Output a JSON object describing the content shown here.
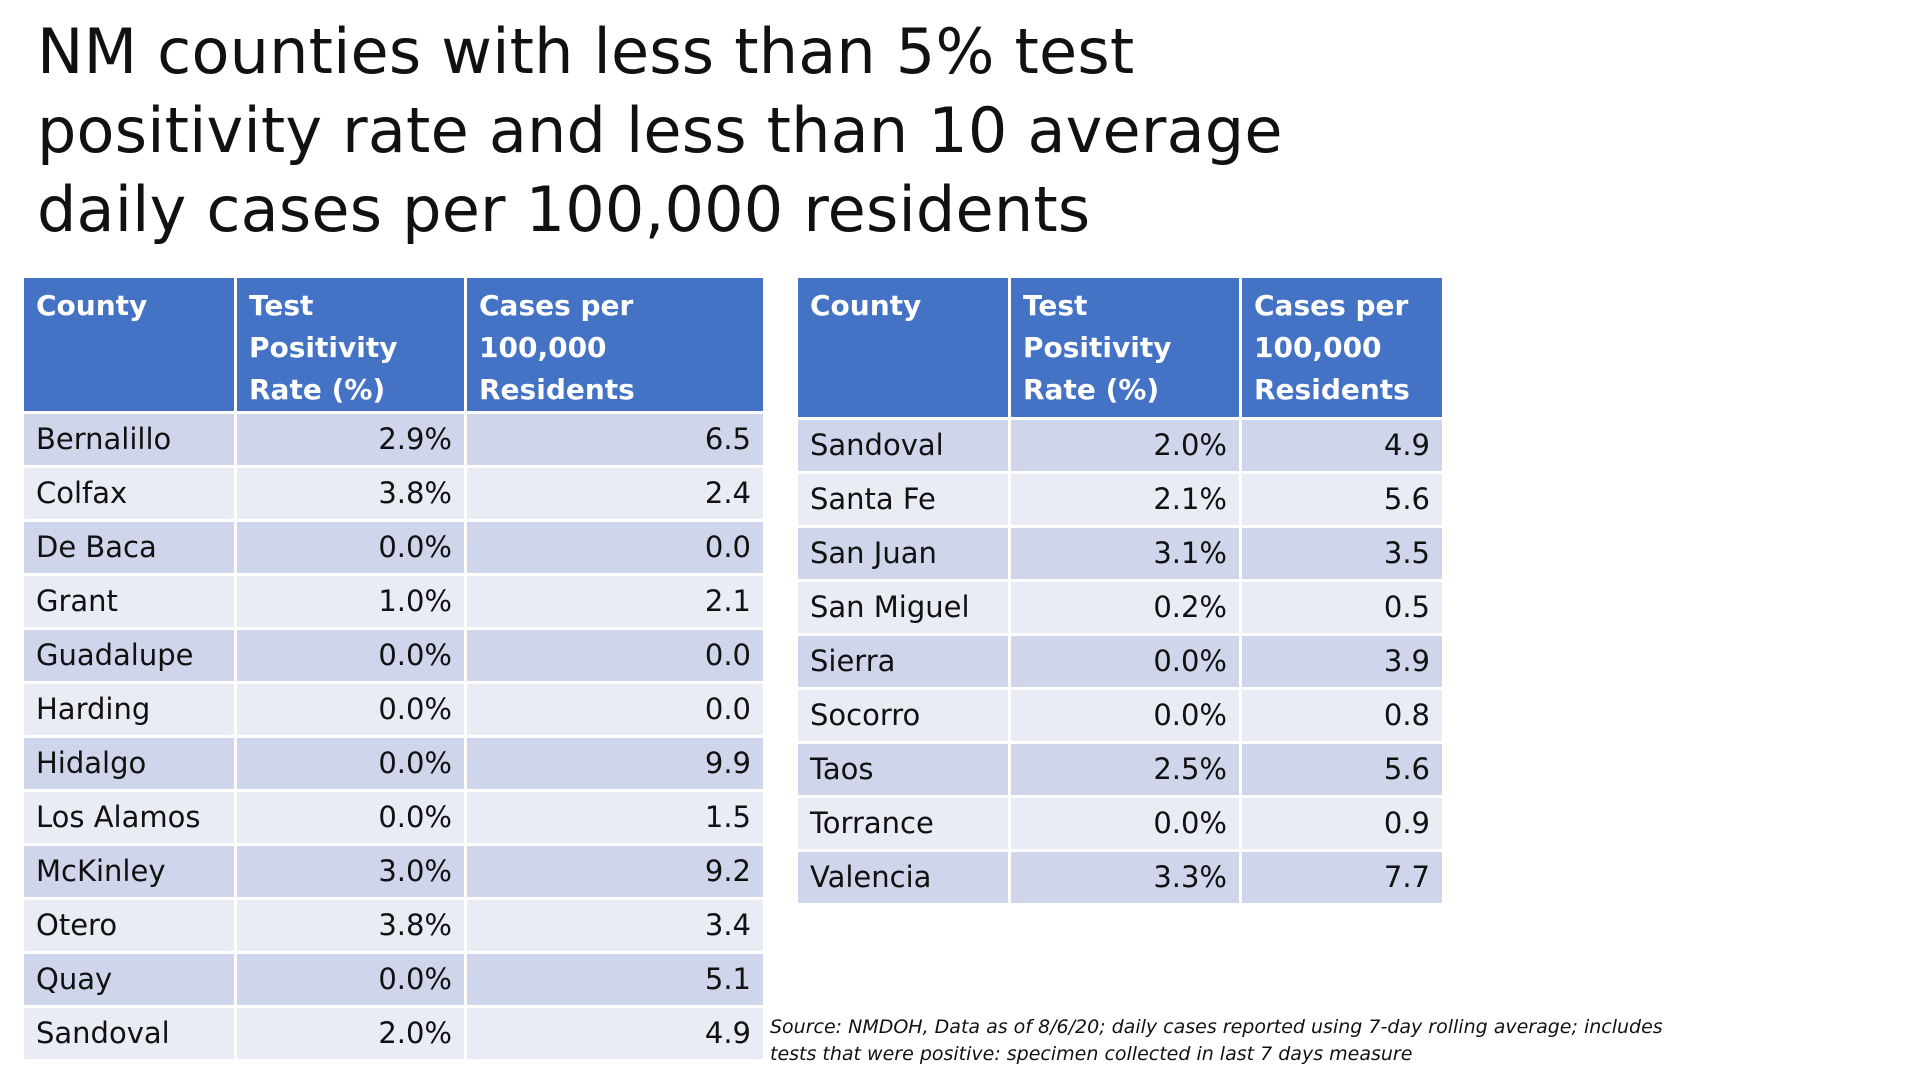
{
  "title": "NM counties with less than 5% test positivity rate and less than 10 average daily cases per 100,000 residents",
  "left_table": {
    "headers": {
      "county": "County",
      "rate": "Test Positivity Rate (%)",
      "cases": "Cases per 100,000 Residents"
    },
    "rows": [
      {
        "county": "Bernalillo",
        "rate": "2.9%",
        "cases": "6.5"
      },
      {
        "county": "Colfax",
        "rate": "3.8%",
        "cases": "2.4"
      },
      {
        "county": "De Baca",
        "rate": "0.0%",
        "cases": "0.0"
      },
      {
        "county": "Grant",
        "rate": "1.0%",
        "cases": "2.1"
      },
      {
        "county": "Guadalupe",
        "rate": "0.0%",
        "cases": "0.0"
      },
      {
        "county": "Harding",
        "rate": "0.0%",
        "cases": "0.0"
      },
      {
        "county": "Hidalgo",
        "rate": "0.0%",
        "cases": "9.9"
      },
      {
        "county": "Los Alamos",
        "rate": "0.0%",
        "cases": "1.5"
      },
      {
        "county": "McKinley",
        "rate": "3.0%",
        "cases": "9.2"
      },
      {
        "county": "Otero",
        "rate": "3.8%",
        "cases": "3.4"
      },
      {
        "county": "Quay",
        "rate": "0.0%",
        "cases": "5.1"
      },
      {
        "county": "Sandoval",
        "rate": "2.0%",
        "cases": "4.9"
      }
    ]
  },
  "right_table": {
    "headers": {
      "county": "County",
      "rate": "Test Positivity Rate (%)",
      "cases": "Cases per 100,000 Residents"
    },
    "rows": [
      {
        "county": "Sandoval",
        "rate": "2.0%",
        "cases": "4.9"
      },
      {
        "county": "Santa Fe",
        "rate": "2.1%",
        "cases": "5.6"
      },
      {
        "county": "San Juan",
        "rate": "3.1%",
        "cases": "3.5"
      },
      {
        "county": "San Miguel",
        "rate": "0.2%",
        "cases": "0.5"
      },
      {
        "county": "Sierra",
        "rate": "0.0%",
        "cases": "3.9"
      },
      {
        "county": "Socorro",
        "rate": "0.0%",
        "cases": "0.8"
      },
      {
        "county": "Taos",
        "rate": "2.5%",
        "cases": "5.6"
      },
      {
        "county": "Torrance",
        "rate": "0.0%",
        "cases": "0.9"
      },
      {
        "county": "Valencia",
        "rate": "3.3%",
        "cases": "7.7"
      }
    ]
  },
  "source_note": "Source: NMDOH, Data as of 8/6/20; daily cases reported using 7-day rolling average; includes tests that were positive: specimen collected in last 7 days measure",
  "colors": {
    "header_bg": "#4472c4",
    "row_band_dark": "#cfd5ea",
    "row_band_light": "#e9ebf5"
  }
}
